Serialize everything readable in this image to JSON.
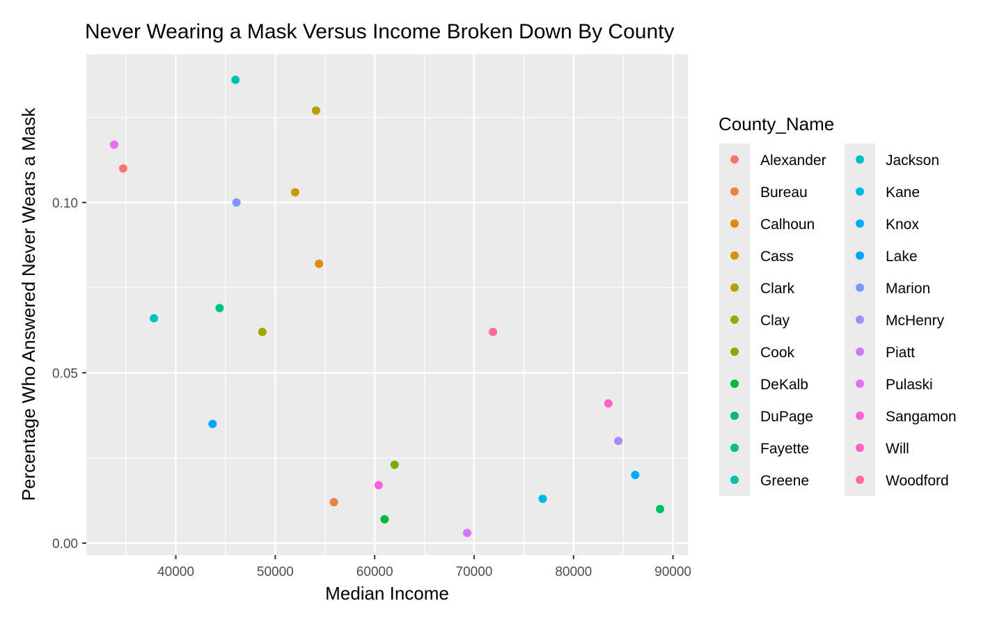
{
  "chart_data": {
    "type": "scatter",
    "title": "Never Wearing a Mask Versus Income Broken Down By County",
    "xlabel": "Median Income",
    "ylabel": "Percentage Who Answered Never Wears a Mask",
    "xlim": [
      31000,
      91500
    ],
    "ylim": [
      -0.0035,
      0.1435
    ],
    "xticks": [
      40000,
      50000,
      60000,
      70000,
      80000,
      90000
    ],
    "xtick_labels": [
      "40000",
      "50000",
      "60000",
      "70000",
      "80000",
      "90000"
    ],
    "yticks": [
      0.0,
      0.05,
      0.1
    ],
    "ytick_labels": [
      "0.00",
      "0.05",
      "0.10"
    ],
    "grid": true,
    "legend": {
      "title": "County_Name",
      "placement": "right",
      "columns": 2
    },
    "series": [
      {
        "name": "Alexander",
        "color": "#F8766D",
        "x": 34700,
        "y": 0.11
      },
      {
        "name": "Bureau",
        "color": "#EE8043",
        "x": 55900,
        "y": 0.012
      },
      {
        "name": "Calhoun",
        "color": "#E08B00",
        "x": 54400,
        "y": 0.082
      },
      {
        "name": "Cass",
        "color": "#CE9700",
        "x": 52000,
        "y": 0.103
      },
      {
        "name": "Clark",
        "color": "#B79F00",
        "x": 54100,
        "y": 0.127
      },
      {
        "name": "Clay",
        "color": "#9DA700",
        "x": 48700,
        "y": 0.062
      },
      {
        "name": "Cook",
        "color": "#7CAE00",
        "x": 62000,
        "y": 0.023
      },
      {
        "name": "DeKalb",
        "color": "#00BA38",
        "x": 61000,
        "y": 0.007
      },
      {
        "name": "DuPage",
        "color": "#00BE67",
        "x": 88700,
        "y": 0.01
      },
      {
        "name": "Fayette",
        "color": "#00C08B",
        "x": 44400,
        "y": 0.069
      },
      {
        "name": "Greene",
        "color": "#00BFAC",
        "x": 46000,
        "y": 0.136
      },
      {
        "name": "Jackson",
        "color": "#00BFC4",
        "x": 37800,
        "y": 0.066
      },
      {
        "name": "Kane",
        "color": "#00B8E5",
        "x": 76900,
        "y": 0.013
      },
      {
        "name": "Knox",
        "color": "#00ABFD",
        "x": 86200,
        "y": 0.02
      },
      {
        "name": "Lake",
        "color": "#00A5FF",
        "x": 43700,
        "y": 0.035
      },
      {
        "name": "Marion",
        "color": "#7F96FF",
        "x": 46100,
        "y": 0.1
      },
      {
        "name": "McHenry",
        "color": "#AC88FF",
        "x": 84500,
        "y": 0.03
      },
      {
        "name": "Piatt",
        "color": "#CF78FF",
        "x": 69300,
        "y": 0.003
      },
      {
        "name": "Pulaski",
        "color": "#E76BF3",
        "x": 33800,
        "y": 0.117
      },
      {
        "name": "Sangamon",
        "color": "#FA62DB",
        "x": 60400,
        "y": 0.017
      },
      {
        "name": "Will",
        "color": "#FF61C3",
        "x": 83500,
        "y": 0.041
      },
      {
        "name": "Woodford",
        "color": "#FF6C91",
        "x": 71900,
        "y": 0.062
      }
    ]
  }
}
